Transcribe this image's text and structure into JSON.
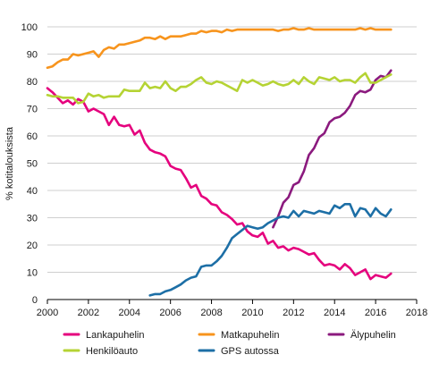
{
  "chart_data": {
    "type": "line",
    "ylabel": "% kotitalouksista",
    "xlabel": "",
    "xlim": [
      2000,
      2018
    ],
    "ylim": [
      0,
      100
    ],
    "x_ticks": [
      2000,
      2002,
      2004,
      2006,
      2008,
      2010,
      2012,
      2014,
      2016,
      2018
    ],
    "y_ticks": [
      0,
      10,
      20,
      30,
      40,
      50,
      60,
      70,
      80,
      90,
      100
    ],
    "grid": "horizontal",
    "legend_position": "bottom",
    "series": [
      {
        "name": "Lankapuhelin",
        "color": "#e5007d",
        "points": [
          [
            2000.0,
            77.5
          ],
          [
            2000.25,
            76
          ],
          [
            2000.5,
            74
          ],
          [
            2000.75,
            72
          ],
          [
            2001.0,
            73
          ],
          [
            2001.25,
            71.5
          ],
          [
            2001.5,
            73.5
          ],
          [
            2001.75,
            72.5
          ],
          [
            2002.0,
            69
          ],
          [
            2002.25,
            70
          ],
          [
            2002.5,
            69
          ],
          [
            2002.75,
            68
          ],
          [
            2003.0,
            64
          ],
          [
            2003.25,
            67
          ],
          [
            2003.5,
            64
          ],
          [
            2003.75,
            63.5
          ],
          [
            2004.0,
            64
          ],
          [
            2004.25,
            60.5
          ],
          [
            2004.5,
            62
          ],
          [
            2004.75,
            57.5
          ],
          [
            2005.0,
            55
          ],
          [
            2005.25,
            54
          ],
          [
            2005.5,
            53.5
          ],
          [
            2005.75,
            52.5
          ],
          [
            2006.0,
            49
          ],
          [
            2006.25,
            48
          ],
          [
            2006.5,
            47.5
          ],
          [
            2006.75,
            44.5
          ],
          [
            2007.0,
            41
          ],
          [
            2007.25,
            42
          ],
          [
            2007.5,
            38
          ],
          [
            2007.75,
            37
          ],
          [
            2008.0,
            35
          ],
          [
            2008.25,
            34.5
          ],
          [
            2008.5,
            32
          ],
          [
            2008.75,
            31
          ],
          [
            2009.0,
            29.5
          ],
          [
            2009.25,
            27.5
          ],
          [
            2009.5,
            28
          ],
          [
            2009.75,
            25
          ],
          [
            2010.0,
            23.5
          ],
          [
            2010.25,
            23
          ],
          [
            2010.5,
            24.5
          ],
          [
            2010.75,
            20.5
          ],
          [
            2011.0,
            21.5
          ],
          [
            2011.25,
            19
          ],
          [
            2011.5,
            19.5
          ],
          [
            2011.75,
            18
          ],
          [
            2012.0,
            19
          ],
          [
            2012.25,
            18.5
          ],
          [
            2012.5,
            17.5
          ],
          [
            2012.75,
            16.5
          ],
          [
            2013.0,
            17
          ],
          [
            2013.25,
            14.5
          ],
          [
            2013.5,
            12.5
          ],
          [
            2013.75,
            13
          ],
          [
            2014.0,
            12.5
          ],
          [
            2014.25,
            11
          ],
          [
            2014.5,
            13
          ],
          [
            2014.75,
            11.5
          ],
          [
            2015.0,
            9
          ],
          [
            2015.25,
            10
          ],
          [
            2015.5,
            11
          ],
          [
            2015.75,
            7.5
          ],
          [
            2016.0,
            9
          ],
          [
            2016.25,
            8.5
          ],
          [
            2016.5,
            8
          ],
          [
            2016.75,
            9.5
          ]
        ]
      },
      {
        "name": "Matkapuhelin",
        "color": "#f7941d",
        "points": [
          [
            2000.0,
            85
          ],
          [
            2000.25,
            85.5
          ],
          [
            2000.5,
            87
          ],
          [
            2000.75,
            88
          ],
          [
            2001.0,
            88
          ],
          [
            2001.25,
            90
          ],
          [
            2001.5,
            89.5
          ],
          [
            2001.75,
            90
          ],
          [
            2002.0,
            90.5
          ],
          [
            2002.25,
            91
          ],
          [
            2002.5,
            89
          ],
          [
            2002.75,
            91.5
          ],
          [
            2003.0,
            92.5
          ],
          [
            2003.25,
            92
          ],
          [
            2003.5,
            93.5
          ],
          [
            2003.75,
            93.5
          ],
          [
            2004.0,
            94
          ],
          [
            2004.25,
            94.5
          ],
          [
            2004.5,
            95
          ],
          [
            2004.75,
            96
          ],
          [
            2005.0,
            96
          ],
          [
            2005.25,
            95.5
          ],
          [
            2005.5,
            96.5
          ],
          [
            2005.75,
            95.5
          ],
          [
            2006.0,
            96.5
          ],
          [
            2006.25,
            96.5
          ],
          [
            2006.5,
            96.5
          ],
          [
            2006.75,
            97
          ],
          [
            2007.0,
            97.5
          ],
          [
            2007.25,
            97.5
          ],
          [
            2007.5,
            98.5
          ],
          [
            2007.75,
            98
          ],
          [
            2008.0,
            98.5
          ],
          [
            2008.25,
            98.5
          ],
          [
            2008.5,
            98
          ],
          [
            2008.75,
            99
          ],
          [
            2009.0,
            98.5
          ],
          [
            2009.25,
            99
          ],
          [
            2009.5,
            99
          ],
          [
            2009.75,
            99
          ],
          [
            2010.0,
            99
          ],
          [
            2010.25,
            99
          ],
          [
            2010.5,
            99
          ],
          [
            2010.75,
            99
          ],
          [
            2011.0,
            99
          ],
          [
            2011.25,
            98.5
          ],
          [
            2011.5,
            99
          ],
          [
            2011.75,
            99
          ],
          [
            2012.0,
            99.5
          ],
          [
            2012.25,
            99
          ],
          [
            2012.5,
            99
          ],
          [
            2012.75,
            99.5
          ],
          [
            2013.0,
            99
          ],
          [
            2013.25,
            99
          ],
          [
            2013.5,
            99
          ],
          [
            2013.75,
            99
          ],
          [
            2014.0,
            99
          ],
          [
            2014.25,
            99
          ],
          [
            2014.5,
            99
          ],
          [
            2014.75,
            99
          ],
          [
            2015.0,
            99
          ],
          [
            2015.25,
            99.5
          ],
          [
            2015.5,
            99
          ],
          [
            2015.75,
            99.5
          ],
          [
            2016.0,
            99
          ],
          [
            2016.25,
            99
          ],
          [
            2016.5,
            99
          ],
          [
            2016.75,
            99
          ]
        ]
      },
      {
        "name": "Älypuhelin",
        "color": "#8b1a7e",
        "points": [
          [
            2011.0,
            26.5
          ],
          [
            2011.25,
            30.5
          ],
          [
            2011.5,
            35.5
          ],
          [
            2011.75,
            37.5
          ],
          [
            2012.0,
            42
          ],
          [
            2012.25,
            43
          ],
          [
            2012.5,
            47
          ],
          [
            2012.75,
            53
          ],
          [
            2013.0,
            55.5
          ],
          [
            2013.25,
            59.5
          ],
          [
            2013.5,
            61
          ],
          [
            2013.75,
            65
          ],
          [
            2014.0,
            66.5
          ],
          [
            2014.25,
            67
          ],
          [
            2014.5,
            68.5
          ],
          [
            2014.75,
            71
          ],
          [
            2015.0,
            75
          ],
          [
            2015.25,
            76.5
          ],
          [
            2015.5,
            76
          ],
          [
            2015.75,
            77
          ],
          [
            2016.0,
            80.5
          ],
          [
            2016.25,
            82
          ],
          [
            2016.5,
            81.5
          ],
          [
            2016.75,
            84
          ]
        ]
      },
      {
        "name": "Henkilöauto",
        "color": "#b5d334",
        "points": [
          [
            2000.0,
            75
          ],
          [
            2000.25,
            74.5
          ],
          [
            2000.5,
            74.5
          ],
          [
            2000.75,
            74
          ],
          [
            2001.0,
            74
          ],
          [
            2001.25,
            74
          ],
          [
            2001.5,
            72
          ],
          [
            2001.75,
            72.5
          ],
          [
            2002.0,
            75.5
          ],
          [
            2002.25,
            74.5
          ],
          [
            2002.5,
            75
          ],
          [
            2002.75,
            74
          ],
          [
            2003.0,
            74.5
          ],
          [
            2003.25,
            74.5
          ],
          [
            2003.5,
            74.5
          ],
          [
            2003.75,
            77
          ],
          [
            2004.0,
            76.5
          ],
          [
            2004.25,
            76.5
          ],
          [
            2004.5,
            76.5
          ],
          [
            2004.75,
            79.5
          ],
          [
            2005.0,
            77.5
          ],
          [
            2005.25,
            78
          ],
          [
            2005.5,
            77.5
          ],
          [
            2005.75,
            80
          ],
          [
            2006.0,
            77.5
          ],
          [
            2006.25,
            76.5
          ],
          [
            2006.5,
            78
          ],
          [
            2006.75,
            78
          ],
          [
            2007.0,
            79
          ],
          [
            2007.25,
            80.5
          ],
          [
            2007.5,
            81.5
          ],
          [
            2007.75,
            79.5
          ],
          [
            2008.0,
            79
          ],
          [
            2008.25,
            80
          ],
          [
            2008.5,
            79.5
          ],
          [
            2008.75,
            78.5
          ],
          [
            2009.0,
            77.5
          ],
          [
            2009.25,
            76.5
          ],
          [
            2009.5,
            80.5
          ],
          [
            2009.75,
            79.5
          ],
          [
            2010.0,
            80.5
          ],
          [
            2010.25,
            79.5
          ],
          [
            2010.5,
            78.5
          ],
          [
            2010.75,
            79
          ],
          [
            2011.0,
            80
          ],
          [
            2011.25,
            79
          ],
          [
            2011.5,
            78.5
          ],
          [
            2011.75,
            79
          ],
          [
            2012.0,
            80.5
          ],
          [
            2012.25,
            79
          ],
          [
            2012.5,
            81.5
          ],
          [
            2012.75,
            80
          ],
          [
            2013.0,
            79
          ],
          [
            2013.25,
            81.5
          ],
          [
            2013.5,
            81
          ],
          [
            2013.75,
            80.5
          ],
          [
            2014.0,
            81.5
          ],
          [
            2014.25,
            80
          ],
          [
            2014.5,
            80.5
          ],
          [
            2014.75,
            80.5
          ],
          [
            2015.0,
            79.5
          ],
          [
            2015.25,
            81.5
          ],
          [
            2015.5,
            83
          ],
          [
            2015.75,
            79.5
          ],
          [
            2016.0,
            79.5
          ],
          [
            2016.25,
            80.5
          ],
          [
            2016.5,
            81.5
          ],
          [
            2016.75,
            82.5
          ]
        ]
      },
      {
        "name": "GPS autossa",
        "color": "#1d6fa6",
        "points": [
          [
            2005.0,
            1.5
          ],
          [
            2005.25,
            2
          ],
          [
            2005.5,
            2
          ],
          [
            2005.75,
            3
          ],
          [
            2006.0,
            3.5
          ],
          [
            2006.25,
            4.5
          ],
          [
            2006.5,
            5.5
          ],
          [
            2006.75,
            7
          ],
          [
            2007.0,
            8
          ],
          [
            2007.25,
            8.5
          ],
          [
            2007.5,
            12
          ],
          [
            2007.75,
            12.5
          ],
          [
            2008.0,
            12.5
          ],
          [
            2008.25,
            14
          ],
          [
            2008.5,
            16
          ],
          [
            2008.75,
            19
          ],
          [
            2009.0,
            22.5
          ],
          [
            2009.25,
            24
          ],
          [
            2009.5,
            25.5
          ],
          [
            2009.75,
            27
          ],
          [
            2010.0,
            26.5
          ],
          [
            2010.25,
            26
          ],
          [
            2010.5,
            26.5
          ],
          [
            2010.75,
            28
          ],
          [
            2011.0,
            29
          ],
          [
            2011.25,
            30
          ],
          [
            2011.5,
            30.5
          ],
          [
            2011.75,
            30
          ],
          [
            2012.0,
            32.5
          ],
          [
            2012.25,
            30.5
          ],
          [
            2012.5,
            32.5
          ],
          [
            2012.75,
            32
          ],
          [
            2013.0,
            31.5
          ],
          [
            2013.25,
            32.5
          ],
          [
            2013.5,
            32
          ],
          [
            2013.75,
            31.5
          ],
          [
            2014.0,
            34.5
          ],
          [
            2014.25,
            33.5
          ],
          [
            2014.5,
            35
          ],
          [
            2014.75,
            35
          ],
          [
            2015.0,
            30.5
          ],
          [
            2015.25,
            33.5
          ],
          [
            2015.5,
            33
          ],
          [
            2015.75,
            30.5
          ],
          [
            2016.0,
            33.5
          ],
          [
            2016.25,
            31.5
          ],
          [
            2016.5,
            30.5
          ],
          [
            2016.75,
            33
          ]
        ]
      }
    ]
  },
  "legend": {
    "items": [
      {
        "label": "Lankapuhelin",
        "color": "#e5007d"
      },
      {
        "label": "Matkapuhelin",
        "color": "#f7941d"
      },
      {
        "label": "Älypuhelin",
        "color": "#8b1a7e"
      },
      {
        "label": "Henkilöauto",
        "color": "#b5d334"
      },
      {
        "label": "GPS autossa",
        "color": "#1d6fa6"
      }
    ]
  }
}
